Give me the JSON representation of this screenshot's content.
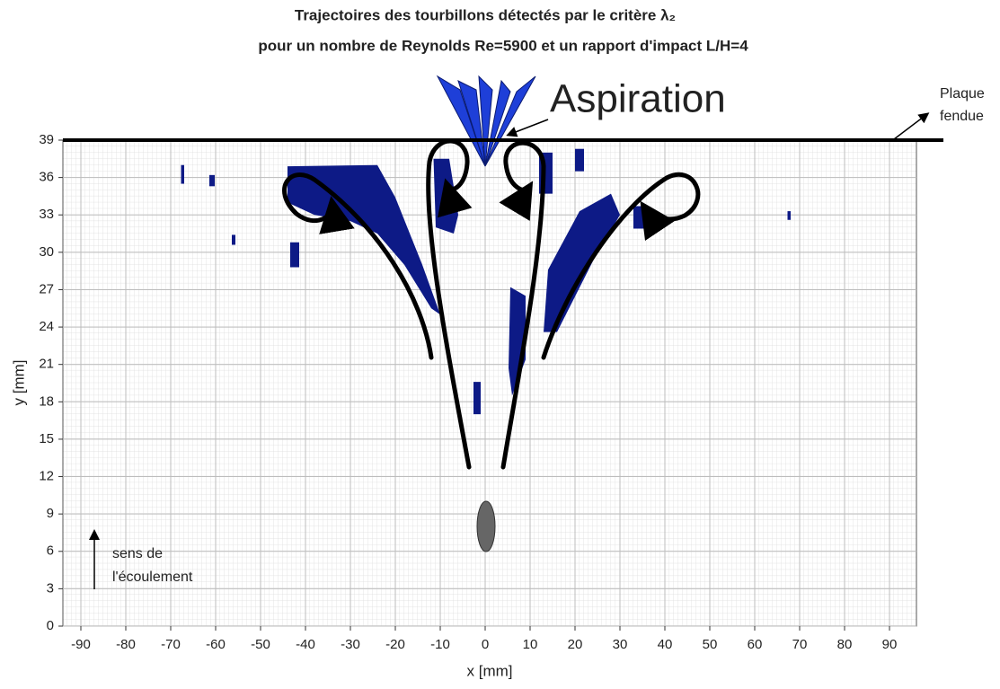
{
  "chart_data": {
    "type": "regions",
    "title": [
      "Trajectoires des tourbillons détectés par le critère λ₂",
      "pour un nombre de Reynolds Re=5900 et un rapport d'impact L/H=4"
    ],
    "x_label": "x [mm]",
    "y_label": "y [mm]",
    "xlim": [
      -94,
      96
    ],
    "ylim": [
      0,
      39
    ],
    "xticks": [
      -90,
      -80,
      -70,
      -60,
      -50,
      -40,
      -30,
      -20,
      -10,
      0,
      10,
      20,
      30,
      40,
      50,
      60,
      70,
      80,
      90
    ],
    "yticks": [
      0,
      3,
      6,
      9,
      12,
      15,
      18,
      21,
      24,
      27,
      30,
      33,
      36,
      39
    ],
    "grid": true,
    "color": "#0d1a86",
    "regions": [
      {
        "x": [
          -44,
          -24,
          -20,
          -14,
          -10,
          -12,
          -18,
          -24,
          -30,
          -38,
          -44
        ],
        "y": [
          36.9,
          37,
          34.4,
          29,
          25,
          25.5,
          29,
          31.5,
          32.5,
          33,
          34
        ]
      },
      {
        "x": [
          -11.5,
          -8,
          -6,
          -7,
          -11
        ],
        "y": [
          37.5,
          37.5,
          33,
          31.5,
          32
        ]
      },
      {
        "x": [
          -2.6,
          -1,
          -1,
          -2.6
        ],
        "y": [
          19.6,
          19.6,
          17,
          17
        ]
      },
      {
        "x": [
          5.6,
          9,
          9,
          6,
          5.2
        ],
        "y": [
          27.2,
          26.5,
          21.4,
          18.5,
          20.7
        ]
      },
      {
        "x": [
          14,
          21,
          28,
          30,
          24,
          16,
          13
        ],
        "y": [
          28.6,
          33.3,
          34.7,
          33,
          29.3,
          23.6,
          23.6
        ]
      },
      {
        "x": [
          12,
          15,
          15,
          12
        ],
        "y": [
          38,
          38,
          34.7,
          34.7
        ]
      },
      {
        "x": [
          20,
          22,
          22,
          20
        ],
        "y": [
          38.3,
          38.3,
          36.5,
          36.5
        ]
      },
      {
        "x": [
          33,
          36,
          36,
          33
        ],
        "y": [
          33.7,
          33.7,
          31.9,
          31.9
        ]
      },
      {
        "x": [
          67.3,
          68,
          68,
          67.3
        ],
        "y": [
          33.3,
          33.3,
          32.6,
          32.6
        ]
      },
      {
        "x": [
          -67.7,
          -67,
          -67,
          -67.7
        ],
        "y": [
          37,
          37,
          35.5,
          35.5
        ]
      },
      {
        "x": [
          -61.4,
          -60.2,
          -60.2,
          -61.4
        ],
        "y": [
          36.2,
          36.2,
          35.3,
          35.3
        ]
      },
      {
        "x": [
          -56.4,
          -55.6,
          -55.6,
          -56.4
        ],
        "y": [
          31.4,
          31.4,
          30.6,
          30.6
        ]
      },
      {
        "x": [
          -43.4,
          -41.4,
          -41.4,
          -43.4
        ],
        "y": [
          30.8,
          30.8,
          28.8,
          28.8
        ]
      }
    ],
    "annotations": [
      "Aspiration",
      "Plaque",
      "fendue",
      "sens de",
      "l'écoulement"
    ]
  }
}
